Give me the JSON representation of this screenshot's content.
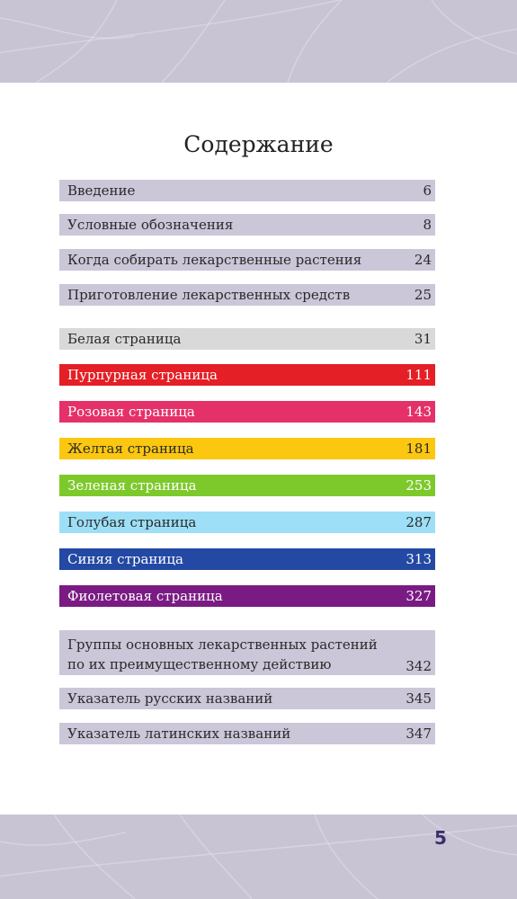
{
  "header_band": {
    "color": "#c9c4d4",
    "texture": "leaf-texture"
  },
  "title": "Содержание",
  "entries": [
    {
      "label": "Введение",
      "page": "6",
      "bg": "#cbc6d8"
    },
    {
      "label": "Условные обозначения",
      "page": "8",
      "bg": "#cbc6d8"
    },
    {
      "label": "Когда собирать лекарственные растения",
      "page": "24",
      "bg": "#cbc6d8"
    },
    {
      "label": "Приготовление лекарственных средств",
      "page": "25",
      "bg": "#cbc6d8"
    },
    {
      "label": "Белая страница",
      "page": "31",
      "bg": "#d9d9d9"
    },
    {
      "label": "Пурпурная страница",
      "page": "111",
      "bg": "#e41f26",
      "light": true
    },
    {
      "label": "Розовая страница",
      "page": "143",
      "bg": "#e5316a",
      "light": true
    },
    {
      "label": "Желтая страница",
      "page": "181",
      "bg": "#fcc710"
    },
    {
      "label": "Зеленая страница",
      "page": "253",
      "bg": "#7dc92c",
      "light": true
    },
    {
      "label": "Голубая страница",
      "page": "287",
      "bg": "#9ddff6"
    },
    {
      "label": "Синяя страница",
      "page": "313",
      "bg": "#2349a4",
      "light": true
    },
    {
      "label": "Фиолетовая страница",
      "page": "327",
      "bg": "#7a1b83",
      "light": true
    },
    {
      "label": "Группы основных лекарственных растений\nпо их преимущественному действию",
      "page": "342",
      "bg": "#cbc6d8"
    },
    {
      "label": "Указатель русских названий",
      "page": "345",
      "bg": "#cbc6d8"
    },
    {
      "label": "Указатель латинских названий",
      "page": "347",
      "bg": "#cbc6d8"
    }
  ],
  "page_number": "5"
}
